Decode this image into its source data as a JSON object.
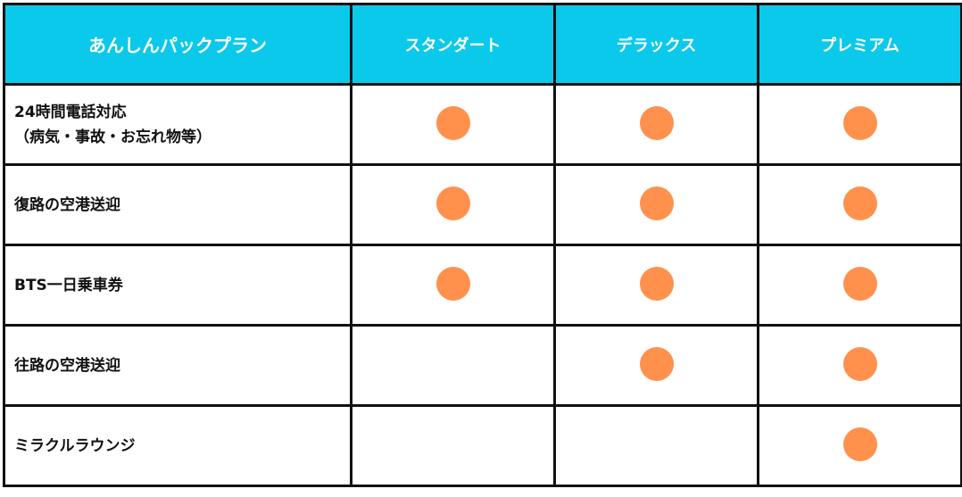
{
  "header": [
    "あんしんパックプラン",
    "スタンダート",
    "デラックス",
    "プレミアム"
  ],
  "rows": [
    {
      "label": "24時間電話対応",
      "label2": "（病気・事故・お忘れ物等）",
      "included": [
        true,
        true,
        true
      ]
    },
    {
      "label": "復路の空港送迎",
      "included": [
        true,
        true,
        true
      ]
    },
    {
      "label": "BTS一日乗車券",
      "included": [
        true,
        true,
        true
      ]
    },
    {
      "label": "往路の空港送迎",
      "included": [
        false,
        true,
        true
      ]
    },
    {
      "label": "ミラクルラウンジ",
      "included": [
        false,
        false,
        true
      ]
    }
  ],
  "colors": {
    "header": "#0bc9ea",
    "mark": "#ff914d"
  },
  "mark_icon": "orange-circle"
}
